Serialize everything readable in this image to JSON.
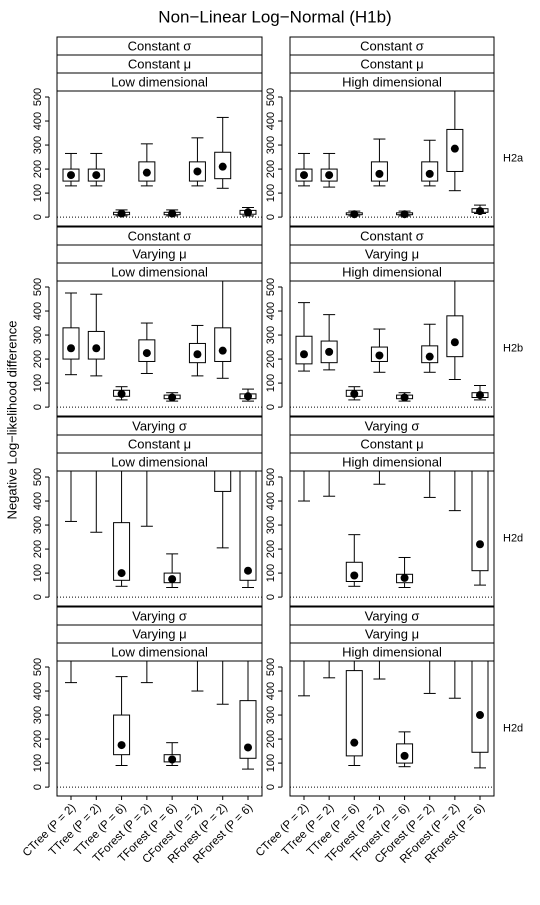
{
  "chart_data": {
    "type": "boxplot",
    "title": "Non−Linear Log−Normal (H1b)",
    "ylabel": "Negative Log−likelihood difference",
    "categories": [
      "CTree (P = 2)",
      "TTree (P = 2)",
      "TTree (P = 6)",
      "TForest (P = 2)",
      "TForest (P = 6)",
      "CForest (P = 2)",
      "RForest (P = 2)",
      "RForest (P = 6)"
    ],
    "ylim": [
      -37,
      525
    ],
    "yticks": [
      0,
      100,
      200,
      300,
      400,
      500
    ],
    "row_labels": [
      "H2a",
      "H2b",
      "H2d",
      "H2d"
    ],
    "box_color": "#000000",
    "panels": [
      {
        "strips": [
          "Constant σ",
          "Constant μ",
          "Low dimensional"
        ],
        "boxes": [
          {
            "whisker_low": 130,
            "q1": 150,
            "q3": 200,
            "whisker_high": 265,
            "mean": 175
          },
          {
            "whisker_low": 130,
            "q1": 150,
            "q3": 200,
            "whisker_high": 265,
            "mean": 175
          },
          {
            "whisker_low": 5,
            "q1": 10,
            "q3": 20,
            "whisker_high": 30,
            "mean": 15
          },
          {
            "whisker_low": 130,
            "q1": 150,
            "q3": 230,
            "whisker_high": 305,
            "mean": 185
          },
          {
            "whisker_low": 5,
            "q1": 10,
            "q3": 20,
            "whisker_high": 30,
            "mean": 15
          },
          {
            "whisker_low": 130,
            "q1": 150,
            "q3": 230,
            "whisker_high": 330,
            "mean": 190
          },
          {
            "whisker_low": 120,
            "q1": 160,
            "q3": 270,
            "whisker_high": 415,
            "mean": 210
          },
          {
            "whisker_low": 5,
            "q1": 12,
            "q3": 28,
            "whisker_high": 40,
            "mean": 20
          }
        ]
      },
      {
        "strips": [
          "Constant σ",
          "Constant μ",
          "High dimensional"
        ],
        "boxes": [
          {
            "whisker_low": 130,
            "q1": 150,
            "q3": 200,
            "whisker_high": 265,
            "mean": 175
          },
          {
            "whisker_low": 125,
            "q1": 150,
            "q3": 200,
            "whisker_high": 265,
            "mean": 175
          },
          {
            "whisker_low": 5,
            "q1": 10,
            "q3": 18,
            "whisker_high": 25,
            "mean": 12
          },
          {
            "whisker_low": 130,
            "q1": 150,
            "q3": 230,
            "whisker_high": 325,
            "mean": 180
          },
          {
            "whisker_low": 5,
            "q1": 10,
            "q3": 18,
            "whisker_high": 25,
            "mean": 12
          },
          {
            "whisker_low": 130,
            "q1": 150,
            "q3": 230,
            "whisker_high": 320,
            "mean": 180
          },
          {
            "whisker_low": 110,
            "q1": 190,
            "q3": 365,
            "whisker_high": null,
            "mean": 285
          },
          {
            "whisker_low": 15,
            "q1": 20,
            "q3": 35,
            "whisker_high": 50,
            "mean": 25
          }
        ]
      },
      {
        "strips": [
          "Constant σ",
          "Varying μ",
          "Low dimensional"
        ],
        "boxes": [
          {
            "whisker_low": 135,
            "q1": 200,
            "q3": 330,
            "whisker_high": 475,
            "mean": 245
          },
          {
            "whisker_low": 130,
            "q1": 200,
            "q3": 315,
            "whisker_high": 470,
            "mean": 245
          },
          {
            "whisker_low": 30,
            "q1": 45,
            "q3": 70,
            "whisker_high": 85,
            "mean": 55
          },
          {
            "whisker_low": 140,
            "q1": 190,
            "q3": 280,
            "whisker_high": 350,
            "mean": 225
          },
          {
            "whisker_low": 25,
            "q1": 35,
            "q3": 50,
            "whisker_high": 60,
            "mean": 40
          },
          {
            "whisker_low": 130,
            "q1": 185,
            "q3": 265,
            "whisker_high": 340,
            "mean": 220
          },
          {
            "whisker_low": 120,
            "q1": 190,
            "q3": 330,
            "whisker_high": null,
            "mean": 235
          },
          {
            "whisker_low": 25,
            "q1": 35,
            "q3": 55,
            "whisker_high": 75,
            "mean": 45
          }
        ]
      },
      {
        "strips": [
          "Constant σ",
          "Varying μ",
          "High dimensional"
        ],
        "boxes": [
          {
            "whisker_low": 150,
            "q1": 180,
            "q3": 295,
            "whisker_high": 435,
            "mean": 220
          },
          {
            "whisker_low": 155,
            "q1": 185,
            "q3": 275,
            "whisker_high": 385,
            "mean": 230
          },
          {
            "whisker_low": 30,
            "q1": 45,
            "q3": 70,
            "whisker_high": 85,
            "mean": 55
          },
          {
            "whisker_low": 145,
            "q1": 190,
            "q3": 250,
            "whisker_high": 325,
            "mean": 215
          },
          {
            "whisker_low": 25,
            "q1": 35,
            "q3": 50,
            "whisker_high": 60,
            "mean": 40
          },
          {
            "whisker_low": 145,
            "q1": 185,
            "q3": 255,
            "whisker_high": 345,
            "mean": 210
          },
          {
            "whisker_low": 115,
            "q1": 210,
            "q3": 380,
            "whisker_high": null,
            "mean": 270
          },
          {
            "whisker_low": 30,
            "q1": 40,
            "q3": 60,
            "whisker_high": 90,
            "mean": 50
          }
        ]
      },
      {
        "strips": [
          "Varying σ",
          "Constant μ",
          "Low dimensional"
        ],
        "boxes": [
          {
            "whisker_low": 315,
            "q1": null,
            "q3": null,
            "whisker_high": null,
            "mean": null
          },
          {
            "whisker_low": 270,
            "q1": null,
            "q3": null,
            "whisker_high": null,
            "mean": null
          },
          {
            "whisker_low": 45,
            "q1": 70,
            "q3": 310,
            "whisker_high": null,
            "mean": 100
          },
          {
            "whisker_low": 295,
            "q1": null,
            "q3": null,
            "whisker_high": null,
            "mean": null
          },
          {
            "whisker_low": 40,
            "q1": 60,
            "q3": 100,
            "whisker_high": 180,
            "mean": 75
          },
          {
            "whisker_low": null,
            "q1": null,
            "q3": null,
            "whisker_high": null,
            "mean": null
          },
          {
            "whisker_low": 205,
            "q1": 440,
            "q3": null,
            "whisker_high": null,
            "mean": null
          },
          {
            "whisker_low": 40,
            "q1": 70,
            "q3": null,
            "whisker_high": null,
            "mean": 110
          }
        ]
      },
      {
        "strips": [
          "Varying σ",
          "Constant μ",
          "High dimensional"
        ],
        "boxes": [
          {
            "whisker_low": 400,
            "q1": null,
            "q3": null,
            "whisker_high": null,
            "mean": null
          },
          {
            "whisker_low": 420,
            "q1": null,
            "q3": null,
            "whisker_high": null,
            "mean": null
          },
          {
            "whisker_low": 45,
            "q1": 65,
            "q3": 145,
            "whisker_high": 260,
            "mean": 90
          },
          {
            "whisker_low": 470,
            "q1": null,
            "q3": null,
            "whisker_high": null,
            "mean": null
          },
          {
            "whisker_low": 40,
            "q1": 60,
            "q3": 95,
            "whisker_high": 165,
            "mean": 80
          },
          {
            "whisker_low": 415,
            "q1": null,
            "q3": null,
            "whisker_high": null,
            "mean": null
          },
          {
            "whisker_low": 360,
            "q1": null,
            "q3": null,
            "whisker_high": null,
            "mean": null
          },
          {
            "whisker_low": 50,
            "q1": 110,
            "q3": null,
            "whisker_high": null,
            "mean": 220
          }
        ]
      },
      {
        "strips": [
          "Varying σ",
          "Varying μ",
          "Low dimensional"
        ],
        "boxes": [
          {
            "whisker_low": 435,
            "q1": null,
            "q3": null,
            "whisker_high": null,
            "mean": null
          },
          {
            "whisker_low": null,
            "q1": null,
            "q3": null,
            "whisker_high": null,
            "mean": null
          },
          {
            "whisker_low": 90,
            "q1": 135,
            "q3": 300,
            "whisker_high": 460,
            "mean": 175
          },
          {
            "whisker_low": 435,
            "q1": null,
            "q3": null,
            "whisker_high": null,
            "mean": null
          },
          {
            "whisker_low": 90,
            "q1": 105,
            "q3": 135,
            "whisker_high": 185,
            "mean": 115
          },
          {
            "whisker_low": 400,
            "q1": null,
            "q3": null,
            "whisker_high": null,
            "mean": null
          },
          {
            "whisker_low": 345,
            "q1": null,
            "q3": null,
            "whisker_high": null,
            "mean": null
          },
          {
            "whisker_low": 75,
            "q1": 120,
            "q3": 360,
            "whisker_high": null,
            "mean": 165
          }
        ]
      },
      {
        "strips": [
          "Varying σ",
          "Varying μ",
          "High dimensional"
        ],
        "boxes": [
          {
            "whisker_low": 380,
            "q1": null,
            "q3": null,
            "whisker_high": null,
            "mean": null
          },
          {
            "whisker_low": 455,
            "q1": null,
            "q3": null,
            "whisker_high": null,
            "mean": null
          },
          {
            "whisker_low": 90,
            "q1": 130,
            "q3": 485,
            "whisker_high": null,
            "mean": 185
          },
          {
            "whisker_low": 450,
            "q1": null,
            "q3": null,
            "whisker_high": null,
            "mean": null
          },
          {
            "whisker_low": 85,
            "q1": 100,
            "q3": 180,
            "whisker_high": 230,
            "mean": 130
          },
          {
            "whisker_low": 390,
            "q1": null,
            "q3": null,
            "whisker_high": null,
            "mean": null
          },
          {
            "whisker_low": 370,
            "q1": null,
            "q3": null,
            "whisker_high": null,
            "mean": null
          },
          {
            "whisker_low": 80,
            "q1": 145,
            "q3": null,
            "whisker_high": null,
            "mean": 300
          }
        ]
      }
    ]
  }
}
